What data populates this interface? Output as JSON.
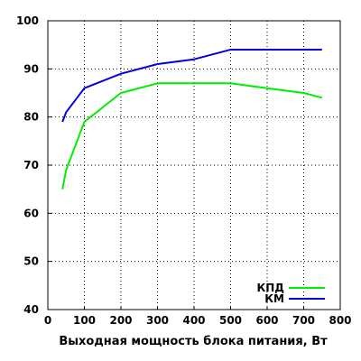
{
  "chart_data": {
    "type": "line",
    "xlabel": "Выходная мощность блока питания, Вт",
    "ylabel": "",
    "xlim": [
      0,
      800
    ],
    "ylim": [
      40,
      100
    ],
    "xticks": [
      0,
      100,
      200,
      300,
      400,
      500,
      600,
      700,
      800
    ],
    "yticks": [
      40,
      50,
      60,
      70,
      80,
      90,
      100
    ],
    "grid": true,
    "legend_position": "bottom-right",
    "series": [
      {
        "name": "КПД",
        "color": "#00ee00",
        "x": [
          40,
          50,
          100,
          200,
          300,
          400,
          500,
          600,
          700,
          750
        ],
        "y": [
          65,
          69,
          79,
          85,
          87,
          87,
          87,
          86,
          85,
          84
        ]
      },
      {
        "name": "КМ",
        "color": "#0000dd",
        "x": [
          40,
          50,
          100,
          200,
          300,
          400,
          500,
          600,
          700,
          750
        ],
        "y": [
          79,
          81,
          86,
          89,
          91,
          92,
          94,
          94,
          94,
          94
        ]
      }
    ]
  }
}
